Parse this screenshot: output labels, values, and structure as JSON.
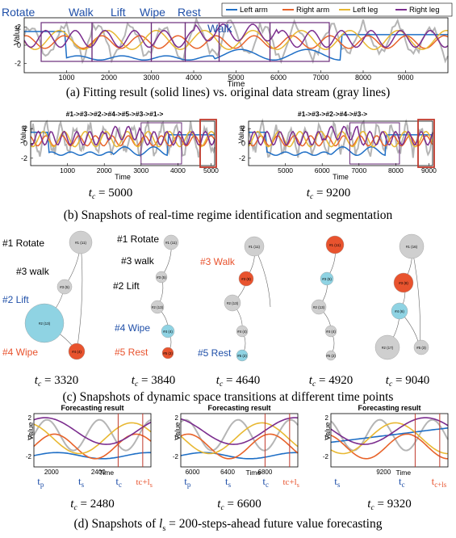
{
  "colors": {
    "left_arm": "#1f6fc6",
    "right_arm": "#e8632a",
    "left_leg": "#e8b832",
    "right_leg": "#7b2d8e",
    "gray": "#b5b5b5",
    "frame": "#c0392b",
    "red_node": "#e8532e",
    "cyan_node": "#8fd3e3",
    "gray_node": "#cfcfcf",
    "blue_label": "#1f4fa8",
    "red_label": "#e8532e"
  },
  "legend": [
    "Left arm",
    "Right arm",
    "Left leg",
    "Right leg"
  ],
  "panel_a": {
    "regimes": [
      "Rotate",
      "Walk",
      "Lift",
      "Wipe",
      "Rest",
      "Walk"
    ],
    "ylabel": "Value",
    "xlabel": "Time",
    "xticks": [
      "1000",
      "2000",
      "3000",
      "4000",
      "5000",
      "6000",
      "7000",
      "8000",
      "9000"
    ],
    "yticks": [
      "2",
      "0",
      "-2"
    ],
    "caption": "(a) Fitting result (solid lines) vs. original data stream (gray lines)"
  },
  "panel_b": {
    "left": {
      "title": "#1->#3->#2->#4->#5->#3->#1->",
      "xticks": [
        "1000",
        "2000",
        "3000",
        "4000",
        "5000"
      ],
      "tc": "5000"
    },
    "right": {
      "title": "#1->#3->#2->#4->#3->",
      "xticks": [
        "5000",
        "6000",
        "7000",
        "8000",
        "9000"
      ],
      "tc": "9200"
    },
    "ylabel": "Value",
    "xlabel": "Time",
    "yticks": [
      "2",
      "0",
      "-2"
    ],
    "caption": "(b) Snapshots of real-time regime identification and segmentation"
  },
  "panel_c": {
    "graphs": [
      {
        "tc": "3320",
        "labels": [
          "#1 Rotate",
          "#3 walk",
          "#2 Lift",
          "#4 Wipe"
        ]
      },
      {
        "tc": "3840",
        "labels": [
          "#1 Rotate",
          "#3 walk",
          "#2 Lift",
          "#4 Wipe",
          "#5 Rest"
        ]
      },
      {
        "tc": "4640",
        "labels": [
          "#3 Walk",
          "#5 Rest"
        ]
      },
      {
        "tc": "4920",
        "labels": []
      },
      {
        "tc": "9040",
        "labels": []
      }
    ],
    "node_texts": [
      "#1 (11)",
      "#3 (5)",
      "#2 (13)",
      "#4 (4)",
      "#5 (2)",
      "#1 (16)",
      "#3 (8)",
      "#4 (6)",
      "#2 (17)",
      "#5 (3)"
    ],
    "caption": "(c) Snapshots of dynamic space transitions at different time points"
  },
  "panel_d": {
    "title": "Forecasting result",
    "ylabel": "Value",
    "xlabel": "Time",
    "plots": [
      {
        "tc": "2480",
        "xticks": [
          "2000",
          "2400"
        ],
        "marks": [
          "t",
          "p",
          "t",
          "s",
          "t",
          "c",
          "t",
          "c",
          "+l",
          "s"
        ]
      },
      {
        "tc": "6600",
        "xticks": [
          "6000",
          "6400",
          "6800"
        ],
        "marks": [
          "t",
          "p",
          "t",
          "s",
          "t",
          "c",
          "t",
          "c",
          "+l",
          "s"
        ]
      },
      {
        "tc": "9320",
        "xticks": [
          "9200"
        ],
        "marks": [
          "t",
          "s",
          "t",
          "c",
          "t",
          "c",
          "+l",
          "s"
        ]
      }
    ],
    "caption": "(d) Snapshots of l_s = 200-steps-ahead future value forecasting"
  },
  "tc_prefix": "t",
  "tc_sub": "c",
  "tc_eq": " = "
}
